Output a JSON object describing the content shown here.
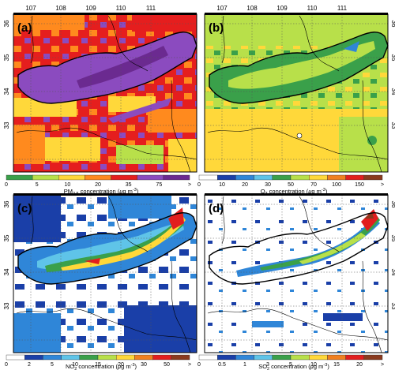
{
  "figure": {
    "lon_ticks": [
      "107",
      "108",
      "109",
      "110",
      "111"
    ],
    "lat_ticks": [
      "36",
      "35",
      "34",
      "33"
    ],
    "panels": [
      {
        "letter": "(a)",
        "pollutant": "PM",
        "pollutant_sub": "2.5",
        "label_rest": " concentration (",
        "unit_mu": "μ",
        "unit_g": "g m",
        "unit_exp": "-3",
        "label_close": ")",
        "colorbar_ticks": [
          "0",
          "5",
          "10",
          "20",
          "35",
          "75",
          ">"
        ],
        "colors": [
          "#3aa04a",
          "#b8e04a",
          "#ffd83a",
          "#ff8a1e",
          "#e51e1e",
          "#8b4bbf",
          "#6b2a90"
        ]
      },
      {
        "letter": "(b)",
        "pollutant": "O",
        "pollutant_sub": "3",
        "label_rest": " concentration (",
        "unit_mu": "μ",
        "unit_g": "g m",
        "unit_exp": "-3",
        "label_close": ")",
        "colorbar_ticks": [
          "0",
          "10",
          "20",
          "30",
          "50",
          "70",
          "100",
          "150",
          ">"
        ],
        "colors": [
          "#ffffff",
          "#1a3fa8",
          "#2f86d8",
          "#5fc4e8",
          "#3aa04a",
          "#b8e04a",
          "#ffd83a",
          "#f08020",
          "#e21e1e",
          "#8a3a1e"
        ]
      },
      {
        "letter": "(c)",
        "pollutant": "NO",
        "pollutant_sub": "2",
        "label_rest": " concentration (",
        "unit_mu": "μ",
        "unit_g": "g m",
        "unit_exp": "-3",
        "label_close": ")",
        "colorbar_ticks": [
          "0",
          "2",
          "5",
          "10",
          "15",
          "20",
          "30",
          "50",
          ">"
        ],
        "colors": [
          "#ffffff",
          "#1a3fa8",
          "#2f86d8",
          "#5fc4e8",
          "#3aa04a",
          "#b8e04a",
          "#ffd83a",
          "#f08020",
          "#e21e1e",
          "#8a3a1e"
        ]
      },
      {
        "letter": "(d)",
        "pollutant": "SO",
        "pollutant_sub": "2",
        "label_rest": " concentration (",
        "unit_mu": "μ",
        "unit_g": "g m",
        "unit_exp": "-3",
        "label_close": ")",
        "colorbar_ticks": [
          "0",
          "0.5",
          "1",
          "3",
          "5",
          "10",
          "15",
          "20",
          ">"
        ],
        "colors": [
          "#ffffff",
          "#1a3fa8",
          "#2f86d8",
          "#5fc4e8",
          "#3aa04a",
          "#b8e04a",
          "#ffd83a",
          "#f08020",
          "#e21e1e",
          "#8a3a1e"
        ]
      }
    ]
  }
}
